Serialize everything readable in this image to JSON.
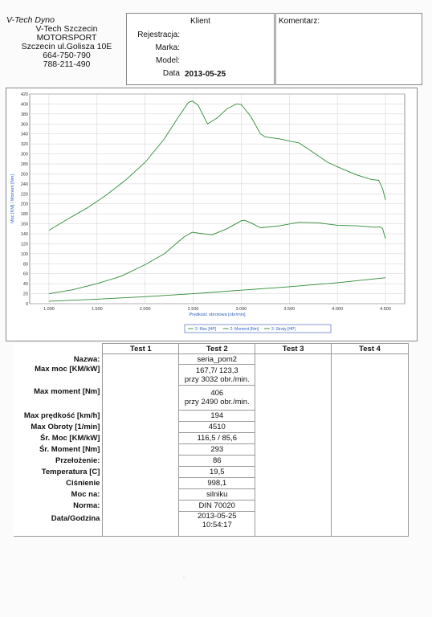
{
  "company": {
    "brand": "V-Tech Dyno",
    "name": "V-Tech Szczecin MOTORSPORT",
    "address": "Szczecin ul.Golisza 10E",
    "phone1": "664-750-790",
    "phone2": "788-211-490"
  },
  "client": {
    "header": "Klient",
    "rejestracja_label": "Rejestracja:",
    "marka_label": "Marka:",
    "model_label": "Model:",
    "data_label": "Data",
    "data_value": "2013-05-25"
  },
  "comment": {
    "header": "Komentarz:"
  },
  "chart_data": {
    "type": "line",
    "xlabel": "Prędkość obrotowa [obr/min]",
    "ylabel": "Moc [KM] / Moment [Nm]",
    "xlim": [
      800,
      4700
    ],
    "ylim": [
      0,
      420
    ],
    "x_ticks": [
      1000,
      1500,
      2000,
      2500,
      3000,
      3500,
      4000,
      4500
    ],
    "x_tick_labels": [
      "1.000",
      "1.500",
      "2.000",
      "2.500",
      "3.000",
      "3.500",
      "4.000",
      "4.500"
    ],
    "y_ticks": [
      0,
      20,
      40,
      60,
      80,
      100,
      120,
      140,
      160,
      180,
      200,
      220,
      240,
      260,
      280,
      300,
      320,
      340,
      360,
      380,
      400,
      420
    ],
    "grid": true,
    "legend_position": "bottom",
    "series": [
      {
        "name": "2: Moc [HP]",
        "x": [
          1000,
          1250,
          1500,
          1750,
          2000,
          2200,
          2400,
          2490,
          2600,
          2700,
          2850,
          3000,
          3032,
          3100,
          3200,
          3400,
          3600,
          3800,
          4000,
          4200,
          4400,
          4440,
          4470,
          4500
        ],
        "y": [
          20,
          28,
          40,
          55,
          78,
          100,
          133,
          143,
          140,
          138,
          150,
          166,
          167,
          162,
          152,
          156,
          163,
          162,
          157,
          156,
          153,
          154,
          150,
          130
        ]
      },
      {
        "name": "2: Moment [Nm]",
        "x": [
          1000,
          1200,
          1400,
          1600,
          1800,
          2000,
          2200,
          2350,
          2450,
          2490,
          2550,
          2650,
          2750,
          2850,
          2950,
          3000,
          3100,
          3200,
          3250,
          3400,
          3600,
          3750,
          3900,
          4050,
          4200,
          4350,
          4430,
          4470,
          4500
        ],
        "y": [
          147,
          170,
          192,
          218,
          248,
          283,
          330,
          375,
          403,
          406,
          398,
          360,
          372,
          390,
          400,
          399,
          375,
          340,
          334,
          330,
          322,
          303,
          283,
          270,
          258,
          249,
          247,
          230,
          208
        ]
      },
      {
        "name": "2: Straty [HP]",
        "x": [
          1000,
          1500,
          2000,
          2500,
          3000,
          3500,
          4000,
          4500
        ],
        "y": [
          5,
          9,
          14,
          20,
          27,
          34,
          42,
          52
        ]
      }
    ]
  },
  "results": {
    "headers": [
      "Test 1",
      "Test 2",
      "Test 3",
      "Test 4"
    ],
    "nazwa_label": "Nazwa:",
    "nazwa": "seria_pom2",
    "max_moc_label": "Max moc [KM/kW]",
    "max_moc_1": "167,7/ 123,3",
    "max_moc_2": "przy 3032 obr./min.",
    "max_moment_label": "Max moment [Nm]",
    "max_moment_1": "406",
    "max_moment_2": "przy 2490 obr./min.",
    "max_predkosc_label": "Max prędkość [km/h]",
    "max_predkosc": "194",
    "max_obroty_label": "Max Obroty [1/min]",
    "max_obroty": "4510",
    "sr_moc_label": "Śr. Moc [KM/kW]",
    "sr_moc": "116,5 / 85,6",
    "sr_moment_label": "Śr. Moment [Nm]",
    "sr_moment": "293",
    "przelozenie_label": "Przełożenie:",
    "przelozenie": "86",
    "temperatura_label": "Temperatura [C]",
    "temperatura": "19,5",
    "cisnienie_label": "Ciśnienie",
    "cisnienie": "998,1",
    "moc_na_label": "Moc na:",
    "moc_na": "silniku",
    "norma_label": "Norma:",
    "norma": "DIN 70020",
    "data_label": "Data/Godzina",
    "data_1": "2013-05-25",
    "data_2": "10:54:17"
  },
  "colors": {
    "line": "#2e8a34",
    "grid": "#cfcfcf",
    "axis_label": "#2f5fbf",
    "plot_bg": "#ffffff"
  }
}
